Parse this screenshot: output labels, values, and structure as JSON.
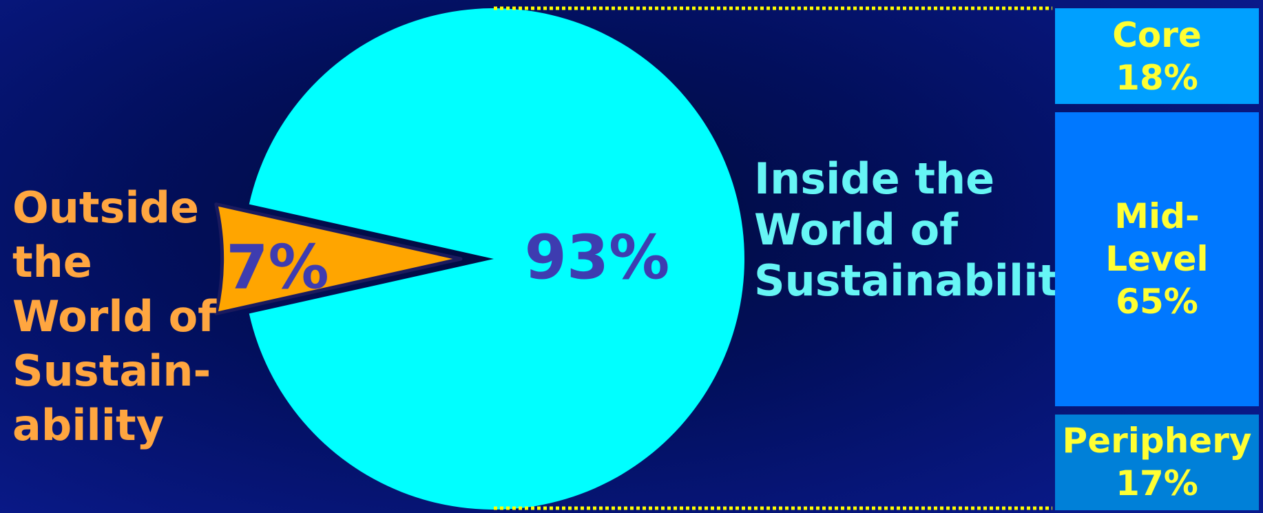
{
  "chart_data": {
    "type": "pie",
    "slices": [
      {
        "key": "outside",
        "label": "Outside the World of Sustain-ability",
        "value": 7,
        "value_label": "7%",
        "exploded": true
      },
      {
        "key": "inside",
        "label": "Inside the World of Sustainability",
        "value": 93,
        "value_label": "93%",
        "exploded": false
      }
    ],
    "breakdown_of": "inside",
    "breakdown": [
      {
        "key": "core",
        "label": "Core",
        "value": 18,
        "value_label": "18%"
      },
      {
        "key": "mid",
        "label": "Mid-\nLevel",
        "value": 65,
        "value_label": "65%"
      },
      {
        "key": "periphery",
        "label": "Periphery",
        "value": 17,
        "value_label": "17%"
      }
    ]
  },
  "labels": {
    "outside": "Outside\nthe\nWorld of\nSustain-\nability",
    "inside": "Inside the\nWorld of\nSustainability"
  },
  "colors": {
    "inside_slice": "#00ffff",
    "outside_slice": "#ffa500",
    "pie_value_text": "#3e3cb0",
    "outside_label_text": "#ffa640",
    "inside_label_text": "#66f5f5",
    "breakdown_text": "#ffff33",
    "breakdown_fills": [
      "#00a0ff",
      "#0078ff",
      "#0080d8"
    ],
    "connector": "#ffff00"
  }
}
